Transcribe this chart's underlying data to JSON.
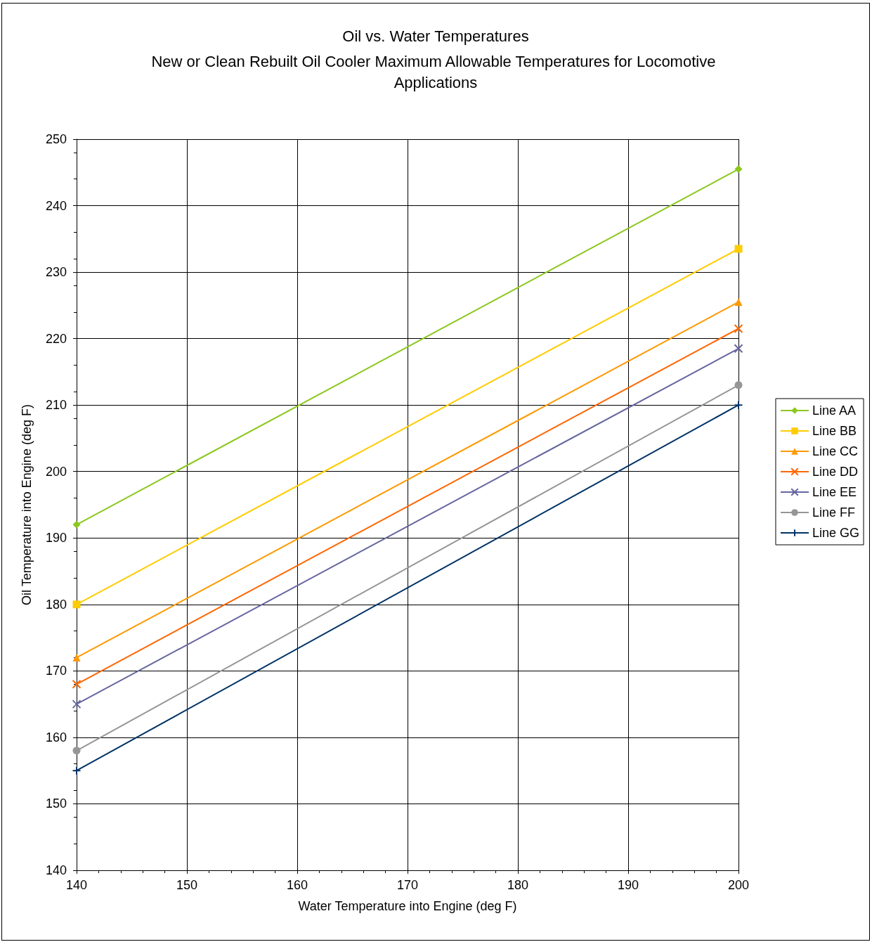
{
  "chart_data": {
    "type": "line",
    "title": "Oil vs. Water Temperatures",
    "subtitle": "New or Clean Rebuilt Oil Cooler Maximum Allowable Temperatures for Locomotive Applications",
    "xlabel": "Water Temperature into Engine (deg F)",
    "ylabel": "Oil Temperature into Engine (deg F)",
    "x": [
      140,
      200
    ],
    "series": [
      {
        "name": "Line AA",
        "color": "#8cc81e",
        "marker": "diamond",
        "values": [
          192,
          245.5
        ]
      },
      {
        "name": "Line BB",
        "color": "#ffcc00",
        "marker": "square",
        "values": [
          180,
          233.5
        ]
      },
      {
        "name": "Line CC",
        "color": "#ff9900",
        "marker": "triangle",
        "values": [
          172,
          225.5
        ]
      },
      {
        "name": "Line DD",
        "color": "#ff6600",
        "marker": "cross",
        "values": [
          168,
          221.5
        ]
      },
      {
        "name": "Line EE",
        "color": "#6666a0",
        "marker": "cross",
        "values": [
          165,
          218.5
        ]
      },
      {
        "name": "Line FF",
        "color": "#969696",
        "marker": "circle",
        "values": [
          158,
          213
        ]
      },
      {
        "name": "Line GG",
        "color": "#003366",
        "marker": "plus",
        "values": [
          155,
          210
        ]
      }
    ],
    "xlim": [
      140,
      200
    ],
    "xticks": [
      140,
      150,
      160,
      170,
      180,
      190,
      200
    ],
    "ylim": [
      140,
      250
    ],
    "yticks": [
      140,
      150,
      160,
      170,
      180,
      190,
      200,
      210,
      220,
      230,
      240,
      250
    ],
    "grid": true,
    "legend": "right",
    "line_style": "solid"
  }
}
